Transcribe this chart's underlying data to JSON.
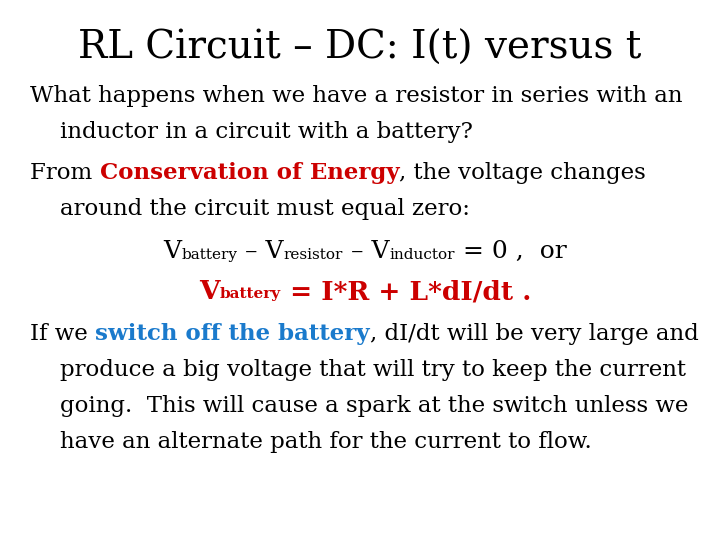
{
  "title": "RL Circuit – DC: I(t) versus t",
  "background_color": "#ffffff",
  "title_fontsize": 28,
  "title_color": "#000000",
  "body_fontsize": 16.5,
  "body_color": "#000000",
  "red_color": "#cc0000",
  "blue_color": "#1a7acc",
  "line1": "What happens when we have a resistor in series with an",
  "line2": "inductor in a circuit with a battery?",
  "line3a": "From ",
  "line3b": "Conservation of Energy",
  "line3c": ", the voltage changes",
  "line4": "around the circuit must equal zero:",
  "line7a": "If we ",
  "line7b": "switch off the battery",
  "line7c": ", dI/dt will be very large and",
  "line8": "produce a big voltage that will try to keep the current",
  "line9": "going.  This will cause a spark at the switch unless we",
  "line10": "have an alternate path for the current to flow."
}
